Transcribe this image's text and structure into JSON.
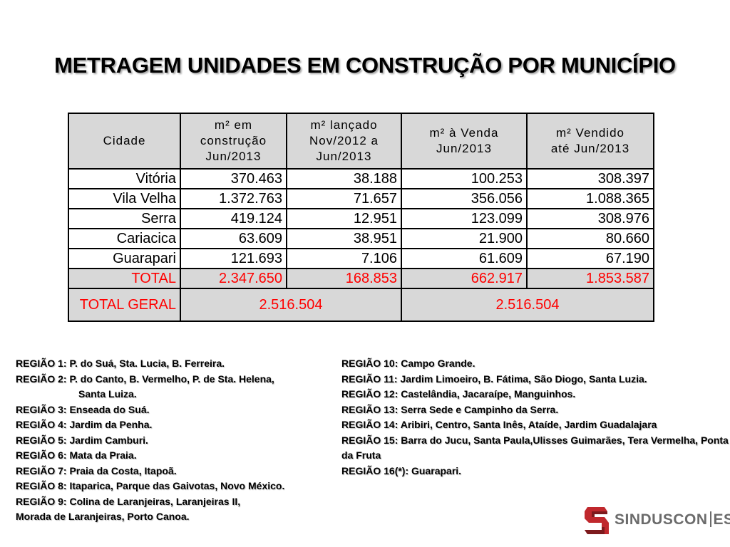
{
  "title": "METRAGEM UNIDADES EM CONSTRUÇÃO POR MUNICÍPIO",
  "colors": {
    "header_bg": "#d8d8d8",
    "total_text": "#ff0000",
    "logo_red": "#c0282d",
    "logo_gray": "#6b6b6b"
  },
  "table": {
    "headers": {
      "city": "Cidade",
      "col1": [
        "m² em",
        "construção",
        "Jun/2013"
      ],
      "col2": [
        "m²  lançado",
        "Nov/2012 a",
        "Jun/2013"
      ],
      "col3": [
        "m²  à Venda",
        "Jun/2013"
      ],
      "col4": [
        "m²  Vendido",
        "até Jun/2013"
      ]
    },
    "rows": [
      {
        "city": "Vitória",
        "c1": "370.463",
        "c2": "38.188",
        "c3": "100.253",
        "c4": "308.397"
      },
      {
        "city": "Vila Velha",
        "c1": "1.372.763",
        "c2": "71.657",
        "c3": "356.056",
        "c4": "1.088.365"
      },
      {
        "city": "Serra",
        "c1": "419.124",
        "c2": "12.951",
        "c3": "123.099",
        "c4": "308.976"
      },
      {
        "city": "Cariacica",
        "c1": "63.609",
        "c2": "38.951",
        "c3": "21.900",
        "c4": "80.660"
      },
      {
        "city": "Guarapari",
        "c1": "121.693",
        "c2": "7.106",
        "c3": "61.609",
        "c4": "67.190"
      }
    ],
    "total": {
      "city": "TOTAL",
      "c1": "2.347.650",
      "c2": "168.853",
      "c3": "662.917",
      "c4": "1.853.587"
    },
    "grand_total": {
      "city": "TOTAL GERAL",
      "left": "2.516.504",
      "right": "2.516.504"
    }
  },
  "regions_left": [
    "REGIÃO 1: P. do Suá, Sta. Lucia, B. Ferreira.",
    "REGIÃO 2: P. do Canto, B. Vermelho, P. de Sta. Helena,",
    "Santa Luiza.",
    "REGIÃO 3: Enseada do Suá.",
    "REGIÃO 4: Jardim da Penha.",
    "REGIÃO 5: Jardim Camburi.",
    "REGIÃO 6: Mata da Praia.",
    "REGIÃO 7: Praia da Costa, Itapoã.",
    "REGIÃO 8: Itaparica, Parque das Gaivotas, Novo México.",
    "REGIÃO 9: Colina de Laranjeiras, Laranjeiras II,",
    "Morada de Laranjeiras, Porto Canoa."
  ],
  "regions_right": [
    "REGIÃO 10: Campo Grande.",
    "REGIÃO 11: Jardim Limoeiro, B. Fátima, São Diogo, Santa Luzia.",
    "REGIÃO 12: Castelândia, Jacaraípe, Manguinhos.",
    "REGIÃO 13: Serra Sede e Campinho da Serra.",
    "REGIÃO 14: Aribiri, Centro, Santa Inês, Ataíde, Jardim Guadalajara",
    "REGIÃO 15: Barra do Jucu, Santa Paula,Ulisses Guimarães, Tera Vermelha, Ponta da Fruta",
    "REGIÃO 16(*): Guarapari."
  ],
  "logo": {
    "name": "SINDUSCON",
    "suffix": "ES",
    "icon": "sinduscon-logo-icon"
  }
}
